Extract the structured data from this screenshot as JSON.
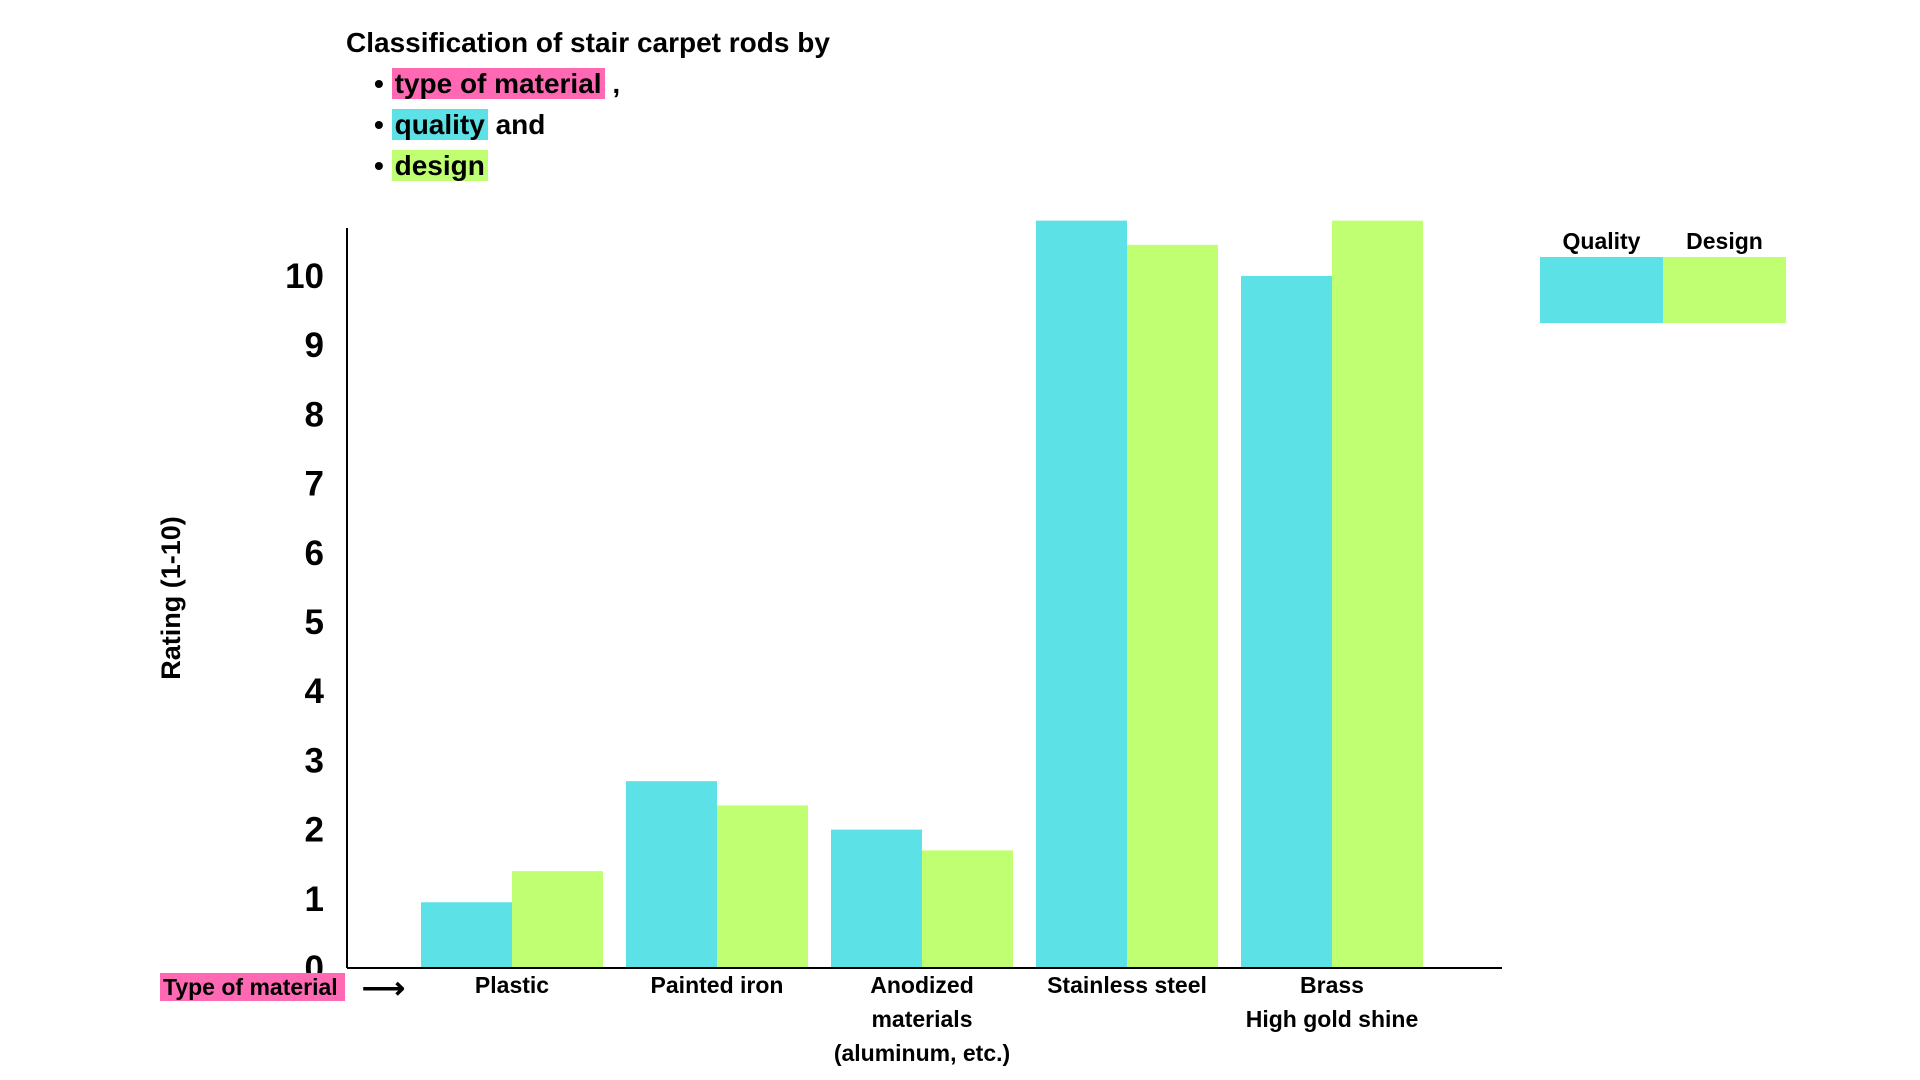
{
  "title": {
    "line": "Classification of stair carpet rods by",
    "bullets": [
      {
        "bullet": "•",
        "highlight": "type of material",
        "suffix": " ,",
        "color": "#ff69b4"
      },
      {
        "bullet": "•",
        "highlight": "quality",
        "suffix": " and",
        "color": "#5ce1e6"
      },
      {
        "bullet": "•",
        "highlight": "design",
        "suffix": "",
        "color": "#c1ff72"
      }
    ]
  },
  "chart_data": {
    "type": "bar",
    "categories": [
      [
        "Plastic"
      ],
      [
        "Painted iron"
      ],
      [
        "Anodized",
        "materials",
        "(aluminum, etc.)"
      ],
      [
        "Stainless steel"
      ],
      [
        "Brass",
        "High gold shine"
      ]
    ],
    "series": [
      {
        "name": "Quality",
        "color": "#5ce1e6",
        "values": [
          0.95,
          2.7,
          2.0,
          10.8,
          10.0
        ]
      },
      {
        "name": "Design",
        "color": "#c1ff72",
        "values": [
          1.4,
          2.35,
          1.7,
          10.45,
          10.8
        ]
      }
    ],
    "yticks": [
      0,
      1,
      2,
      3,
      4,
      5,
      6,
      7,
      8,
      9,
      10
    ],
    "ylim": [
      0,
      10.8
    ],
    "ylabel": "Rating (1-10)",
    "xlabel": "Type of material",
    "xlabel_color": "#ff69b4",
    "xlabel_arrow": "⟶",
    "legend_position": "top-right",
    "grid": false
  }
}
